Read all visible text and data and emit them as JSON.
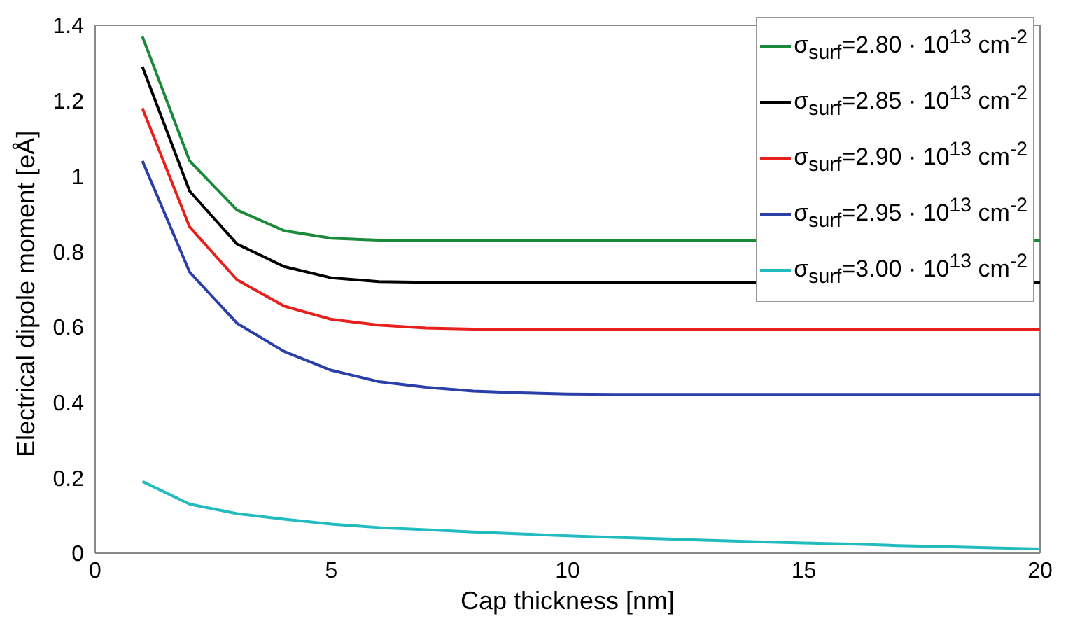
{
  "chart_data": {
    "type": "line",
    "xlabel": "Cap thickness [nm]",
    "ylabel": "Electrical dipole moment [eÅ]",
    "x": [
      1,
      2,
      3,
      4,
      5,
      6,
      7,
      8,
      9,
      10,
      11,
      12,
      13,
      14,
      15,
      16,
      17,
      18,
      19,
      20
    ],
    "xlim": [
      0,
      20
    ],
    "xticks": [
      0,
      5,
      10,
      15,
      20
    ],
    "ylim": [
      0,
      1.4
    ],
    "yticks": [
      0,
      0.2,
      0.4,
      0.6,
      0.8,
      1,
      1.2,
      1.4
    ],
    "grid": false,
    "legend": "top right",
    "marker": "none",
    "line_style": "solid",
    "series": [
      {
        "name": "σ$_{surf}$=2.80 · 10$^{13}$ cm$^{-2}$",
        "color": "#1a8a3a",
        "values": [
          1.37,
          1.04,
          0.91,
          0.855,
          0.835,
          0.83,
          0.83,
          0.83,
          0.83,
          0.83,
          0.83,
          0.83,
          0.83,
          null,
          null,
          null,
          null,
          null,
          null,
          0.83
        ]
      },
      {
        "name": "σ$_{surf}$=2.85 · 10$^{13}$ cm$^{-2}$",
        "color": "#000000",
        "values": [
          1.29,
          0.96,
          0.82,
          0.76,
          0.73,
          0.72,
          0.718,
          0.718,
          0.718,
          0.718,
          0.718,
          0.718,
          0.718,
          null,
          null,
          null,
          null,
          null,
          null,
          0.718
        ]
      },
      {
        "name": "σ$_{surf}$=2.90 · 10$^{13}$ cm$^{-2}$",
        "color": "#e8201c",
        "values": [
          1.18,
          0.865,
          0.725,
          0.655,
          0.62,
          0.605,
          0.597,
          0.594,
          0.593,
          0.593,
          0.593,
          0.593,
          0.593,
          0.593,
          0.593,
          0.593,
          0.593,
          0.593,
          0.593,
          0.593
        ]
      },
      {
        "name": "σ$_{surf}$=2.95 · 10$^{13}$ cm$^{-2}$",
        "color": "#2b3fa8",
        "values": [
          1.04,
          0.745,
          0.61,
          0.535,
          0.485,
          0.455,
          0.44,
          0.43,
          0.425,
          0.422,
          0.421,
          0.421,
          0.421,
          0.421,
          0.421,
          0.421,
          0.421,
          0.421,
          0.421,
          0.421
        ]
      },
      {
        "name": "σ$_{surf}$=3.00 · 10$^{13}$ cm$^{-2}$",
        "color": "#22bcc0",
        "values": [
          0.19,
          0.13,
          0.105,
          0.09,
          0.077,
          0.068,
          0.062,
          0.056,
          0.051,
          0.046,
          0.042,
          0.038,
          0.034,
          0.03,
          0.027,
          0.024,
          0.02,
          0.017,
          0.014,
          0.011
        ]
      }
    ]
  }
}
